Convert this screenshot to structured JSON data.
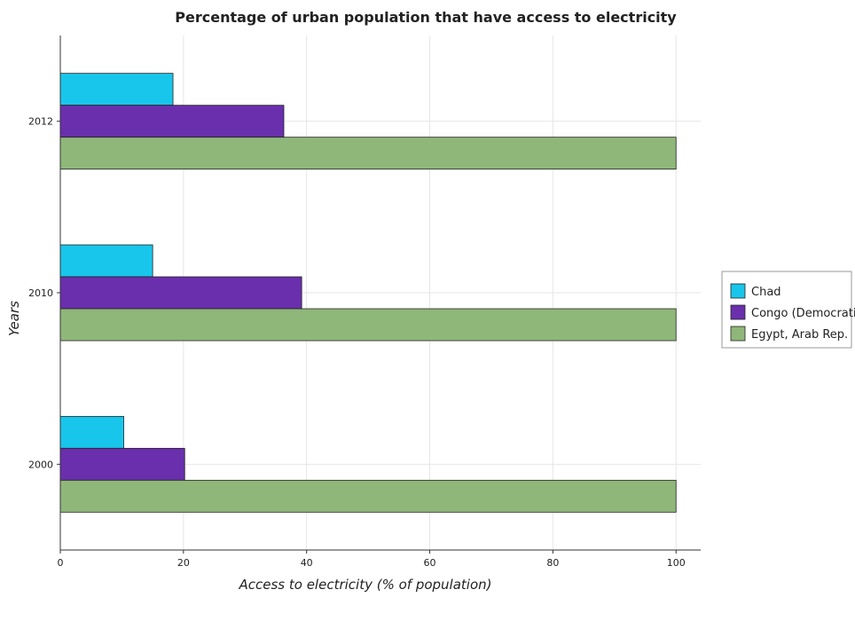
{
  "chart_data": {
    "type": "bar",
    "orientation": "horizontal",
    "title": "Percentage of urban population that have access to electricity",
    "xlabel": "Access to electricity (% of population)",
    "ylabel": "Years",
    "categories": [
      "2000",
      "2010",
      "2012"
    ],
    "xlim": [
      0,
      104
    ],
    "xticks": [
      0,
      20,
      40,
      60,
      80,
      100
    ],
    "grid": true,
    "legend_position": "right",
    "series": [
      {
        "name": "Chad",
        "color": "#19c6eb",
        "values": [
          10.3,
          15.0,
          18.3
        ]
      },
      {
        "name": "Congo (Democratic)",
        "color": "#6a2fad",
        "values": [
          20.2,
          39.2,
          36.3
        ]
      },
      {
        "name": "Egypt, Arab Rep.",
        "color": "#8fb77a",
        "values": [
          100,
          100,
          100
        ]
      }
    ]
  }
}
